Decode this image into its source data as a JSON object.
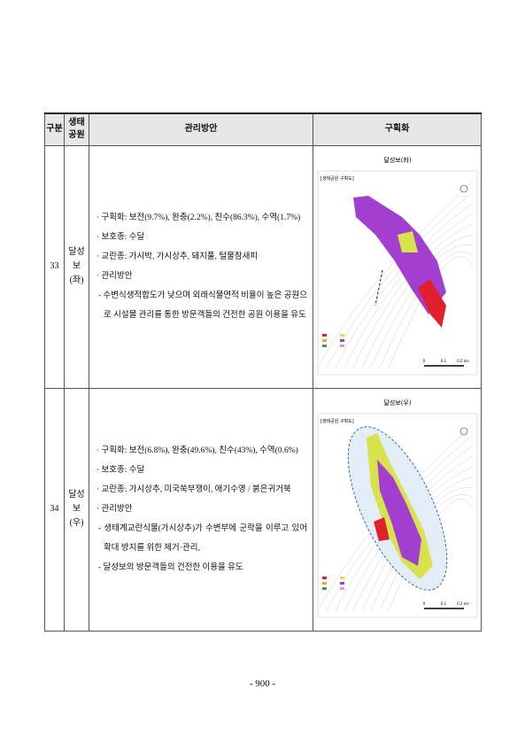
{
  "table": {
    "header": [
      "구분",
      "생태\n공원",
      "관리방안",
      "구획화"
    ],
    "rows": [
      {
        "no": "33",
        "park": "달성보\n(좌)",
        "items": [
          "· 구획화: 보전(9.7%), 완충(2.2%), 친수(86.3%), 수역(1.7%)",
          "· 보호종: 수달",
          "· 교란종: 가시박, 가시상추, 돼지풀, 털물참새피",
          "· 관리방안"
        ],
        "details": [
          "- 수변식생적합도가 낮으며 외래식물면적 비율이 높은 공원으로 시설물 관리를 통한 방문객들의 건전한 공원 이용을 유도"
        ],
        "map_title": "달성보(좌)",
        "map_subtitle": "[생태공원 구획도]",
        "scale": [
          "0",
          "0.1",
          "0.2 km"
        ]
      },
      {
        "no": "34",
        "park": "달성보\n(우)",
        "items": [
          "· 구획화: 보전(6.8%), 완충(49.6%), 친수(43%), 수역(0.6%)",
          "· 보호종: 수달",
          "· 교란종: 가시상추, 미국쑥부쟁이, 애기수영 / 붉은귀거북",
          "· 관리방안"
        ],
        "details": [
          "- 생태계교란식물(가시상추)가 수변부에 군락을 이루고 있어 확대 방지를 위한 제거·관리,",
          "- 달성보의 방문객들의 건전한 이용을 유도"
        ],
        "map_title": "달성보(우)",
        "map_subtitle": "[생태공원 구획도]",
        "scale": [
          "0",
          "0.1",
          "0.2 km"
        ]
      }
    ]
  },
  "footer": {
    "page_number": "- 900 -"
  }
}
